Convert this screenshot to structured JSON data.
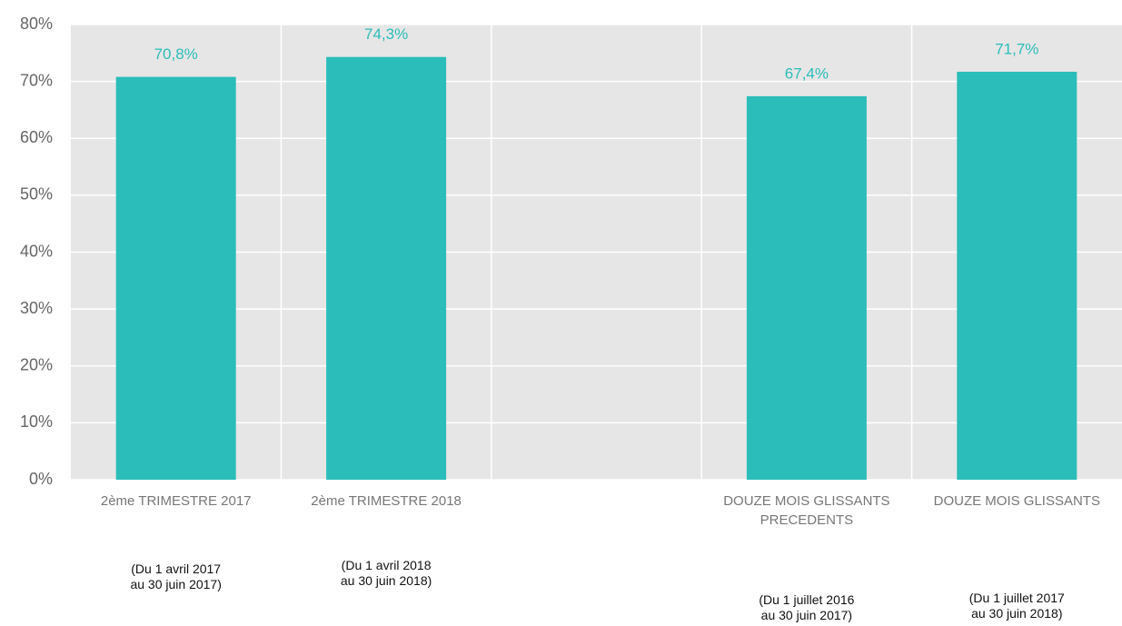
{
  "chart_data": {
    "type": "bar",
    "categories": [
      "2ème TRIMESTRE 2017",
      "2ème TRIMESTRE 2018",
      null,
      "DOUZE MOIS GLISSANTS PRECEDENTS",
      "DOUZE MOIS GLISSANTS"
    ],
    "values": [
      70.8,
      74.3,
      null,
      67.4,
      71.7
    ],
    "value_labels": [
      "70,8%",
      "74,3%",
      null,
      "67,4%",
      "71,7%"
    ],
    "notes": [
      [
        "(Du 1 avril 2017",
        "au 30 juin 2017)"
      ],
      [
        "(Du 1 avril 2018",
        "au 30 juin 2018)"
      ],
      null,
      [
        "(Du 1 juillet 2016",
        "au 30 juin 2017)"
      ],
      [
        "(Du 1 juillet 2017",
        "au 30 juin 2018)"
      ]
    ],
    "color": "#2bbdb9",
    "ylim": [
      0,
      80
    ],
    "yticks": [
      {
        "value": 0,
        "label": "0%"
      },
      {
        "value": 10,
        "label": "10%"
      },
      {
        "value": 20,
        "label": "20%"
      },
      {
        "value": 30,
        "label": "30%"
      },
      {
        "value": 40,
        "label": "40%"
      },
      {
        "value": 50,
        "label": "50%"
      },
      {
        "value": 60,
        "label": "60%"
      },
      {
        "value": 70,
        "label": "70%"
      },
      {
        "value": 80,
        "label": "80%"
      }
    ],
    "grid": true
  }
}
